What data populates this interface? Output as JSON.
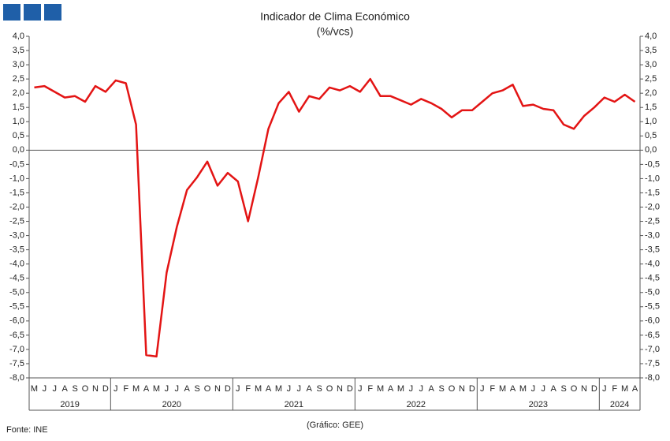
{
  "chart_data": {
    "type": "line",
    "title": "Indicador de Clima Económico",
    "subtitle": "(%/vcs)",
    "source": "Fonte: INE",
    "credit": "(Gráfico: GEE)",
    "categories": [
      "M",
      "J",
      "J",
      "A",
      "S",
      "O",
      "N",
      "D",
      "J",
      "F",
      "M",
      "A",
      "M",
      "J",
      "J",
      "A",
      "S",
      "O",
      "N",
      "D",
      "J",
      "F",
      "M",
      "A",
      "M",
      "J",
      "J",
      "A",
      "S",
      "O",
      "N",
      "D",
      "J",
      "F",
      "M",
      "A",
      "M",
      "J",
      "J",
      "A",
      "S",
      "O",
      "N",
      "D",
      "J",
      "F",
      "M",
      "A",
      "M",
      "J",
      "J",
      "A",
      "S",
      "O",
      "N",
      "D",
      "J",
      "F",
      "M",
      "A"
    ],
    "groups": [
      {
        "name": "2019",
        "count": 8
      },
      {
        "name": "2020",
        "count": 12
      },
      {
        "name": "2021",
        "count": 12
      },
      {
        "name": "2022",
        "count": 12
      },
      {
        "name": "2023",
        "count": 12
      },
      {
        "name": "2024",
        "count": 4
      }
    ],
    "series": [
      {
        "name": "Indicador de Clima Económico",
        "color": "#e31414",
        "values": [
          2.2,
          2.25,
          2.05,
          1.85,
          1.9,
          1.7,
          2.25,
          2.05,
          2.45,
          2.35,
          0.9,
          -7.2,
          -7.25,
          -4.3,
          -2.7,
          -1.4,
          -0.95,
          -0.4,
          -1.25,
          -0.8,
          -1.1,
          -2.5,
          -0.95,
          0.75,
          1.65,
          2.05,
          1.35,
          1.9,
          1.8,
          2.2,
          2.1,
          2.25,
          2.05,
          2.5,
          1.9,
          1.9,
          1.75,
          1.6,
          1.8,
          1.65,
          1.45,
          1.15,
          1.4,
          1.4,
          1.7,
          2.0,
          2.1,
          2.3,
          1.55,
          1.6,
          1.45,
          1.4,
          0.9,
          0.75,
          1.2,
          1.5,
          1.85,
          1.7,
          1.95,
          1.7
        ]
      }
    ],
    "ylim": [
      -8,
      4
    ],
    "yticks": [
      {
        "value": 4,
        "label": "4,0"
      },
      {
        "value": 3.5,
        "label": "3,5"
      },
      {
        "value": 3,
        "label": "3,0"
      },
      {
        "value": 2.5,
        "label": "2,5"
      },
      {
        "value": 2,
        "label": "2,0"
      },
      {
        "value": 1.5,
        "label": "1,5"
      },
      {
        "value": 1,
        "label": "1,0"
      },
      {
        "value": 0.5,
        "label": "0,5"
      },
      {
        "value": 0,
        "label": "0,0"
      },
      {
        "value": -0.5,
        "label": "-0,5"
      },
      {
        "value": -1,
        "label": "-1,0"
      },
      {
        "value": -1.5,
        "label": "-1,5"
      },
      {
        "value": -2,
        "label": "-2,0"
      },
      {
        "value": -2.5,
        "label": "-2,5"
      },
      {
        "value": -3,
        "label": "-3,0"
      },
      {
        "value": -3.5,
        "label": "-3,5"
      },
      {
        "value": -4,
        "label": "-4,0"
      },
      {
        "value": -4.5,
        "label": "-4,5"
      },
      {
        "value": -5,
        "label": "-5,0"
      },
      {
        "value": -5.5,
        "label": "-5,5"
      },
      {
        "value": -6,
        "label": "-6,0"
      },
      {
        "value": -6.5,
        "label": "-6,5"
      },
      {
        "value": -7,
        "label": "-7,0"
      },
      {
        "value": -7.5,
        "label": "-7,5"
      },
      {
        "value": -8,
        "label": "-8,0"
      }
    ],
    "y2lim": [
      -8,
      4
    ],
    "y2ticks": [
      {
        "value": 4,
        "label": "4,0"
      },
      {
        "value": 3.5,
        "label": "3,5"
      },
      {
        "value": 3,
        "label": "3,0"
      },
      {
        "value": 2.5,
        "label": "2,5"
      },
      {
        "value": 2,
        "label": "2,0"
      },
      {
        "value": 1.5,
        "label": "1,5"
      },
      {
        "value": 1,
        "label": "1,0"
      },
      {
        "value": 0.5,
        "label": "0,5"
      },
      {
        "value": 0,
        "label": "0,0"
      },
      {
        "value": -0.5,
        "label": "-0,5"
      },
      {
        "value": -1,
        "label": "-1,0"
      },
      {
        "value": -1.5,
        "label": "-1,5"
      },
      {
        "value": -2,
        "label": "-2,0"
      },
      {
        "value": -2.5,
        "label": "-2,5"
      },
      {
        "value": -3,
        "label": "-3,0"
      },
      {
        "value": -3.5,
        "label": "-3,5"
      },
      {
        "value": -4,
        "label": "-4,0"
      },
      {
        "value": -4.5,
        "label": "-4,5"
      },
      {
        "value": -5,
        "label": "-5,0"
      },
      {
        "value": -5.5,
        "label": "-5,5"
      },
      {
        "value": -6,
        "label": "-6,0"
      },
      {
        "value": -6.5,
        "label": "-6,5"
      },
      {
        "value": -7,
        "label": "-7,0"
      },
      {
        "value": -7.5,
        "label": "-7,5"
      },
      {
        "value": -8,
        "label": "-8,0"
      }
    ],
    "grid": false
  }
}
